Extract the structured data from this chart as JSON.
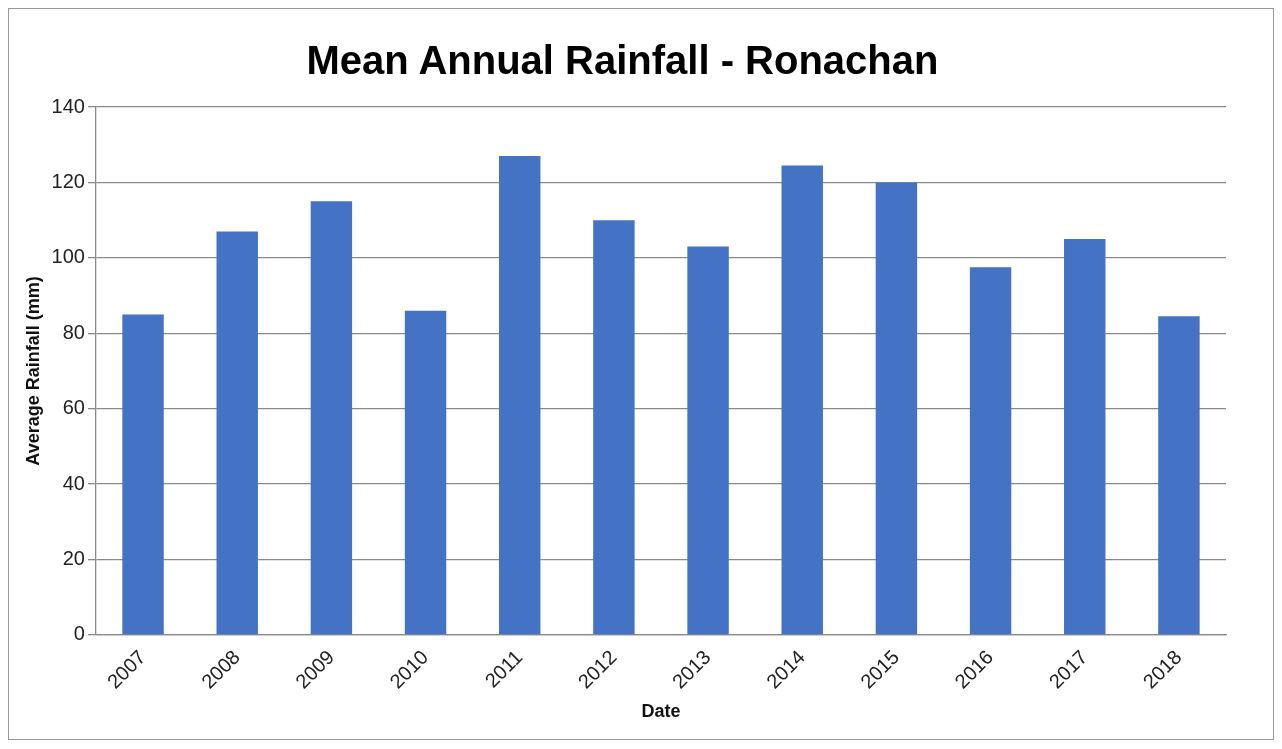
{
  "chart_data": {
    "type": "bar",
    "title": "Mean Annual Rainfall - Ronachan",
    "xlabel": "Date",
    "ylabel": "Average Rainfall (mm)",
    "categories": [
      "2007",
      "2008",
      "2009",
      "2010",
      "2011",
      "2012",
      "2013",
      "2014",
      "2015",
      "2016",
      "2017",
      "2018"
    ],
    "values": [
      85,
      107,
      115,
      86,
      127,
      110,
      103,
      124.5,
      120,
      97.5,
      105,
      84.5
    ],
    "color": "#4472c4",
    "ylim": [
      0,
      140
    ],
    "yticks": [
      0,
      20,
      40,
      60,
      80,
      100,
      120,
      140
    ],
    "grid": "y"
  }
}
